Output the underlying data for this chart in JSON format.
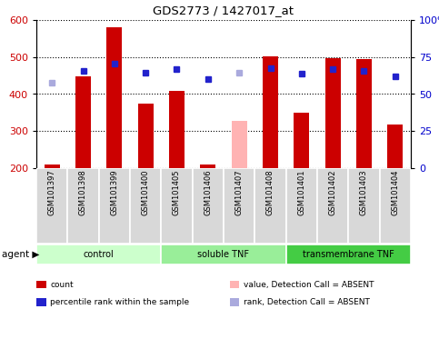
{
  "title": "GDS2773 / 1427017_at",
  "samples": [
    "GSM101397",
    "GSM101398",
    "GSM101399",
    "GSM101400",
    "GSM101405",
    "GSM101406",
    "GSM101407",
    "GSM101408",
    "GSM101401",
    "GSM101402",
    "GSM101403",
    "GSM101404"
  ],
  "bar_values": [
    210,
    448,
    580,
    375,
    408,
    210,
    328,
    502,
    350,
    497,
    495,
    318
  ],
  "bar_colors": [
    "#cc0000",
    "#cc0000",
    "#cc0000",
    "#cc0000",
    "#cc0000",
    "#cc0000",
    "#ffb3b3",
    "#cc0000",
    "#cc0000",
    "#cc0000",
    "#cc0000",
    "#cc0000"
  ],
  "rank_values": [
    430,
    462,
    483,
    458,
    468,
    440,
    458,
    470,
    456,
    468,
    462,
    448
  ],
  "rank_colors": [
    "#aaaadd",
    "#2222cc",
    "#2222cc",
    "#2222cc",
    "#2222cc",
    "#2222cc",
    "#aaaadd",
    "#2222cc",
    "#2222cc",
    "#2222cc",
    "#2222cc",
    "#2222cc"
  ],
  "bar_bottom": 200,
  "ylim": [
    200,
    600
  ],
  "y_ticks": [
    200,
    300,
    400,
    500,
    600
  ],
  "y2_ticks": [
    0,
    25,
    50,
    75,
    100
  ],
  "groups": [
    {
      "label": "control",
      "start": 0,
      "end": 4,
      "color": "#ccffcc"
    },
    {
      "label": "soluble TNF",
      "start": 4,
      "end": 8,
      "color": "#99ee99"
    },
    {
      "label": "transmembrane TNF",
      "start": 8,
      "end": 12,
      "color": "#44cc44"
    }
  ],
  "legend_items": [
    {
      "label": "count",
      "color": "#cc0000"
    },
    {
      "label": "percentile rank within the sample",
      "color": "#2222cc"
    },
    {
      "label": "value, Detection Call = ABSENT",
      "color": "#ffb3b3"
    },
    {
      "label": "rank, Detection Call = ABSENT",
      "color": "#aaaadd"
    }
  ],
  "tick_color_left": "#cc0000",
  "tick_color_right": "#0000cc",
  "bar_width": 0.5,
  "marker_size": 4.5,
  "grid_linestyle": "dotted",
  "grid_color": "black",
  "grid_linewidth": 0.8,
  "sample_box_color": "#d8d8d8",
  "plot_facecolor": "white",
  "fig_facecolor": "white",
  "title_fontsize": 9.5,
  "ytick_fontsize": 8,
  "sample_fontsize": 6.0,
  "group_fontsize": 7.0,
  "legend_fontsize": 6.5,
  "agent_fontsize": 7.5
}
